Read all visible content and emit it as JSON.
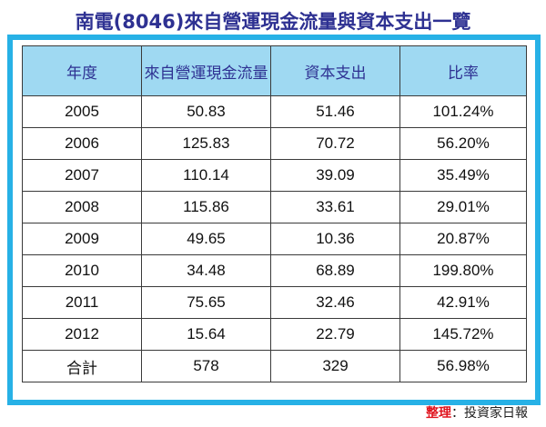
{
  "title": "南電(8046)來自營運現金流量與資本支出一覽",
  "chart_data": {
    "type": "table",
    "columns": [
      "年度",
      "來自營運現金流量",
      "資本支出",
      "比率"
    ],
    "rows": [
      [
        "2005",
        "50.83",
        "51.46",
        "101.24%"
      ],
      [
        "2006",
        "125.83",
        "70.72",
        "56.20%"
      ],
      [
        "2007",
        "110.14",
        "39.09",
        "35.49%"
      ],
      [
        "2008",
        "115.86",
        "33.61",
        "29.01%"
      ],
      [
        "2009",
        "49.65",
        "10.36",
        "20.87%"
      ],
      [
        "2010",
        "34.48",
        "68.89",
        "199.80%"
      ],
      [
        "2011",
        "75.65",
        "32.46",
        "42.91%"
      ],
      [
        "2012",
        "15.64",
        "22.79",
        "145.72%"
      ]
    ],
    "total": [
      "合計",
      "578",
      "329",
      "56.98%"
    ]
  },
  "source": {
    "label": "整理",
    "separator": "：",
    "value": "投資家日報"
  },
  "colors": {
    "title": "#2e3192",
    "frame": "#27b1e6",
    "header_bg": "#9fd9f2",
    "total_label": "#e0141e"
  }
}
